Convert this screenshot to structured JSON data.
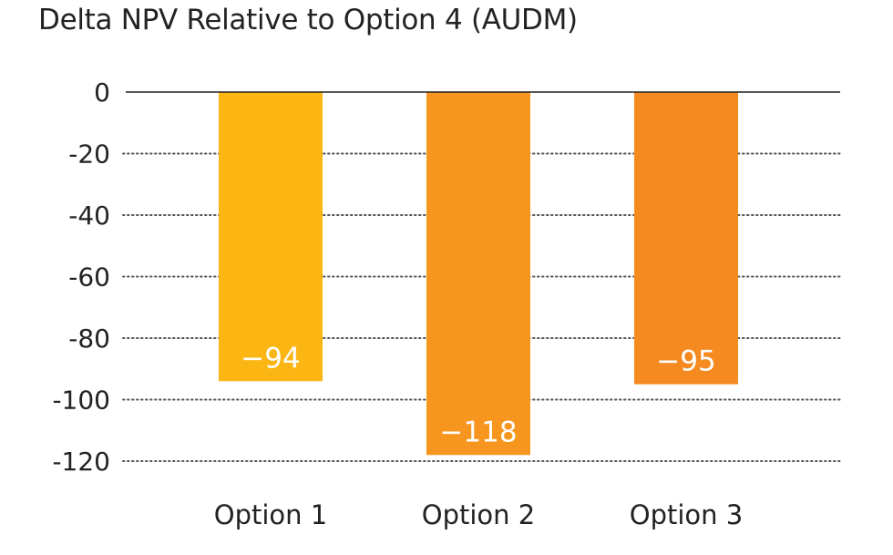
{
  "chart_data": {
    "type": "bar",
    "title": "Delta NPV Relative to Option 4 (AUDM)",
    "categories": [
      "Option 1",
      "Option 2",
      "Option 3"
    ],
    "values": [
      -94,
      -118,
      -95
    ],
    "data_labels": [
      "−94",
      "−118",
      "−95"
    ],
    "ylim": [
      -120,
      0
    ],
    "yticks": [
      0,
      -20,
      -40,
      -60,
      -80,
      -100,
      -120
    ],
    "ytick_labels": [
      "0",
      "-20",
      "-40",
      "-60",
      "-80",
      "-100",
      "-120"
    ],
    "grid": "dotted horizontal",
    "legend": "none",
    "colors": [
      "#FBB614",
      "#F7961F",
      "#F58A20"
    ],
    "zero_line_color": "#222222",
    "grid_color": "#555555",
    "label_color": "#ffffff"
  }
}
